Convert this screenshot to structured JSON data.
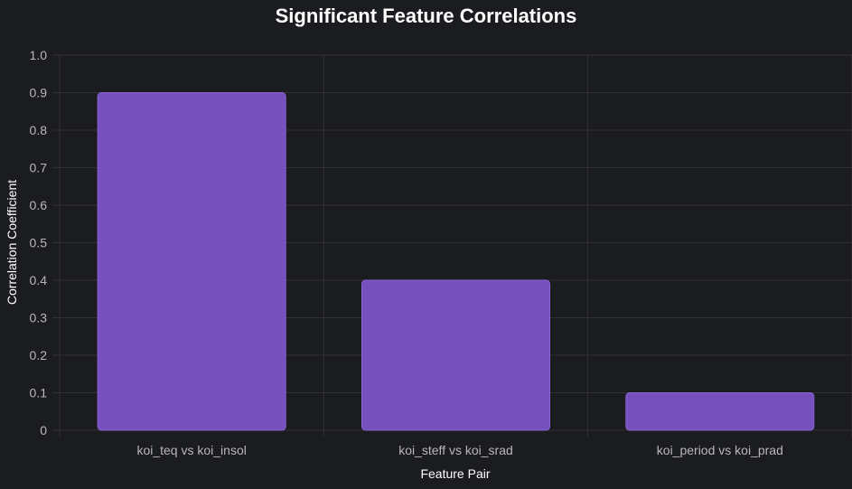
{
  "chart_data": {
    "type": "bar",
    "title": "Significant Feature Correlations",
    "xlabel": "Feature Pair",
    "ylabel": "Correlation Coefficient",
    "categories": [
      "koi_teq vs koi_insol",
      "koi_steff vs koi_srad",
      "koi_period vs koi_prad"
    ],
    "values": [
      0.9,
      0.4,
      0.1
    ],
    "ylim": [
      0,
      1.0
    ],
    "yticks": [
      "0",
      "0.1",
      "0.2",
      "0.3",
      "0.4",
      "0.5",
      "0.6",
      "0.7",
      "0.8",
      "0.9",
      "1.0"
    ],
    "grid": true,
    "legend": "none",
    "colors": {
      "bar_fill": "#7650bd",
      "bar_stroke": "#8a64d6",
      "background": "#1b1c1f",
      "grid": "#303137",
      "tick_text": "#b8b8b8",
      "title_text": "#ffffff"
    }
  }
}
